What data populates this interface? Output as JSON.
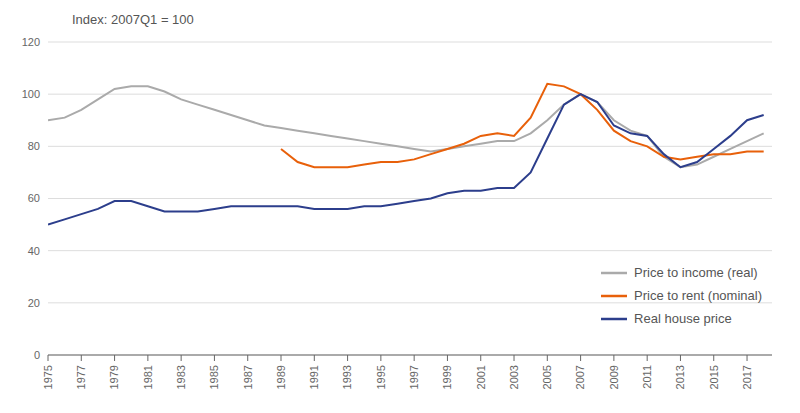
{
  "chart_data": {
    "type": "line",
    "annotations": [
      "Index: 2007Q1 = 100"
    ],
    "x": [
      1975,
      1976,
      1977,
      1978,
      1979,
      1980,
      1981,
      1982,
      1983,
      1984,
      1985,
      1986,
      1987,
      1988,
      1989,
      1990,
      1991,
      1992,
      1993,
      1994,
      1995,
      1996,
      1997,
      1998,
      1999,
      2000,
      2001,
      2002,
      2003,
      2004,
      2005,
      2006,
      2007,
      2008,
      2009,
      2010,
      2011,
      2012,
      2013,
      2014,
      2015,
      2016,
      2017,
      2018
    ],
    "series": [
      {
        "name": "Price to income (real)",
        "color": "#aaaaaa",
        "values": [
          90,
          91,
          94,
          98,
          102,
          103,
          103,
          101,
          98,
          96,
          94,
          92,
          90,
          88,
          87,
          86,
          85,
          84,
          83,
          82,
          81,
          80,
          79,
          78,
          79,
          80,
          81,
          82,
          82,
          85,
          90,
          96,
          100,
          97,
          90,
          86,
          84,
          76,
          72,
          73,
          76,
          79,
          82,
          85
        ]
      },
      {
        "name": "Price to rent (nominal)",
        "color": "#e8600a",
        "values": [
          null,
          null,
          null,
          null,
          null,
          null,
          null,
          null,
          null,
          null,
          null,
          null,
          null,
          null,
          79,
          74,
          72,
          72,
          72,
          73,
          74,
          74,
          75,
          77,
          79,
          81,
          84,
          85,
          84,
          91,
          104,
          103,
          100,
          94,
          86,
          82,
          80,
          76,
          75,
          76,
          77,
          77,
          78,
          78
        ]
      },
      {
        "name": "Real house price",
        "color": "#2c3e8c",
        "values": [
          50,
          52,
          54,
          56,
          59,
          59,
          57,
          55,
          55,
          55,
          56,
          57,
          57,
          57,
          57,
          57,
          56,
          56,
          56,
          57,
          57,
          58,
          59,
          60,
          62,
          63,
          63,
          64,
          64,
          70,
          83,
          96,
          100,
          97,
          88,
          85,
          84,
          77,
          72,
          74,
          79,
          84,
          90,
          92
        ]
      }
    ],
    "xlim": [
      1975,
      2018.5
    ],
    "xticks": [
      1975,
      1977,
      1979,
      1981,
      1983,
      1985,
      1987,
      1989,
      1991,
      1993,
      1995,
      1997,
      1999,
      2001,
      2003,
      2005,
      2007,
      2009,
      2011,
      2013,
      2015,
      2017
    ],
    "ylim": [
      0,
      120
    ],
    "yticks": [
      0,
      20,
      40,
      60,
      80,
      100,
      120
    ],
    "grid": true,
    "legend": "lower right"
  }
}
